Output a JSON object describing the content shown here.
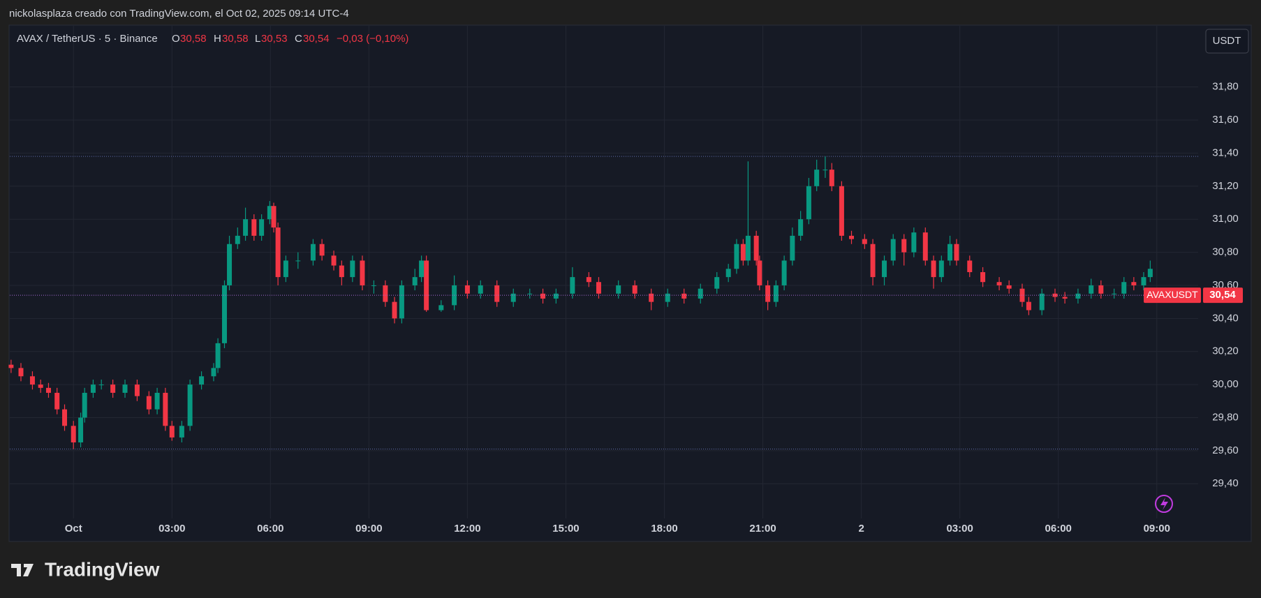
{
  "header": {
    "caption": "nickolasplaza creado con TradingView.com, el Oct 02, 2025 09:14 UTC-4"
  },
  "legend": {
    "symbol": "AVAX / TetherUS · 5 · Binance",
    "open_label": "O",
    "open": "30,58",
    "high_label": "H",
    "high": "30,58",
    "low_label": "L",
    "low": "30,53",
    "close_label": "C",
    "close": "30,54",
    "change": "−0,03 (−0,10%)"
  },
  "footer": {
    "brand": "TradingView"
  },
  "chart_data": {
    "type": "candlestick",
    "currency": "USDT",
    "symbol_tag": "AVAXUSDT",
    "last_price_label": "30,54",
    "up_color": "#089981",
    "down_color": "#f23645",
    "grid": true,
    "price_lines": [
      31.38,
      29.61
    ],
    "x": [
      -1.9,
      -1.6,
      -1.25,
      -1.0,
      -0.76,
      -0.5,
      -0.27,
      0,
      0.22,
      0.34,
      0.6,
      0.85,
      1.2,
      1.57,
      1.94,
      2.3,
      2.55,
      2.8,
      3.0,
      3.3,
      3.55,
      3.9,
      4.27,
      4.4,
      4.6,
      4.75,
      5.0,
      5.24,
      5.5,
      5.73,
      5.98,
      6.1,
      6.23,
      6.47,
      6.84,
      7.3,
      7.57,
      7.93,
      8.17,
      8.5,
      8.8,
      9.15,
      9.5,
      9.78,
      10.0,
      10.4,
      10.6,
      10.75,
      11.2,
      11.6,
      12.0,
      12.4,
      12.9,
      13.4,
      13.9,
      14.3,
      14.7,
      15.2,
      15.7,
      16.0,
      16.6,
      17.1,
      17.6,
      18.1,
      18.6,
      19.1,
      19.6,
      19.95,
      20.2,
      20.4,
      20.55,
      20.8,
      20.9,
      21.15,
      21.4,
      21.65,
      21.9,
      22.15,
      22.4,
      22.64,
      22.9,
      23.1,
      23.4,
      23.7,
      24.1,
      24.35,
      24.7,
      24.97,
      25.3,
      25.6,
      25.95,
      26.2,
      26.44,
      26.7,
      26.9,
      27.3,
      27.7,
      28.2,
      28.5,
      28.9,
      29.1,
      29.5,
      29.9,
      30.2,
      30.6,
      31.0,
      31.3,
      31.7,
      32.0,
      32.3,
      32.6,
      32.8,
      33.0
    ],
    "open": [
      30.12,
      30.1,
      30.05,
      30.0,
      29.98,
      29.95,
      29.85,
      29.75,
      29.65,
      29.8,
      29.95,
      30.0,
      30.0,
      29.95,
      30.0,
      29.93,
      29.85,
      29.95,
      29.75,
      29.68,
      29.75,
      30.0,
      30.05,
      30.1,
      30.25,
      30.6,
      30.85,
      30.9,
      31.0,
      30.9,
      31.0,
      31.08,
      30.95,
      30.65,
      30.75,
      30.75,
      30.85,
      30.78,
      30.72,
      30.65,
      30.75,
      30.6,
      30.6,
      30.5,
      30.4,
      30.6,
      30.65,
      30.75,
      30.45,
      30.48,
      30.6,
      30.55,
      30.6,
      30.5,
      30.55,
      30.55,
      30.52,
      30.55,
      30.65,
      30.62,
      30.55,
      30.6,
      30.55,
      30.5,
      30.55,
      30.52,
      30.58,
      30.65,
      30.7,
      30.85,
      30.75,
      30.9,
      30.75,
      30.6,
      30.5,
      30.6,
      30.75,
      30.9,
      31.0,
      31.2,
      31.3,
      31.3,
      31.2,
      30.9,
      30.88,
      30.85,
      30.65,
      30.75,
      30.88,
      30.8,
      30.92,
      30.75,
      30.65,
      30.75,
      30.85,
      30.75,
      30.68,
      30.62,
      30.6,
      30.58,
      30.5,
      30.45,
      30.55,
      30.53,
      30.52,
      30.55,
      30.6,
      30.55,
      30.55,
      30.62,
      30.6,
      30.65,
      30.58
    ],
    "high": [
      30.15,
      30.13,
      30.08,
      30.03,
      30.01,
      29.98,
      29.88,
      29.78,
      29.83,
      29.98,
      30.03,
      30.03,
      30.03,
      30.03,
      30.03,
      29.96,
      29.98,
      29.98,
      29.78,
      29.78,
      30.03,
      30.08,
      30.13,
      30.28,
      30.63,
      30.9,
      30.95,
      31.07,
      31.03,
      31.03,
      31.11,
      31.1,
      30.98,
      30.78,
      30.8,
      30.88,
      30.88,
      30.81,
      30.75,
      30.78,
      30.78,
      30.63,
      30.63,
      30.53,
      30.63,
      30.7,
      30.78,
      30.78,
      30.51,
      30.66,
      30.63,
      30.63,
      30.63,
      30.58,
      30.58,
      30.58,
      30.58,
      30.71,
      30.68,
      30.65,
      30.63,
      30.63,
      30.58,
      30.58,
      30.58,
      30.61,
      30.68,
      30.73,
      30.88,
      30.88,
      31.35,
      30.93,
      30.78,
      30.63,
      30.63,
      30.78,
      30.95,
      31.05,
      31.25,
      31.36,
      31.38,
      31.34,
      31.23,
      30.93,
      30.91,
      30.88,
      30.78,
      30.91,
      30.91,
      30.95,
      30.95,
      30.78,
      30.78,
      30.9,
      30.88,
      30.78,
      30.71,
      30.65,
      30.63,
      30.61,
      30.53,
      30.58,
      30.58,
      30.56,
      30.58,
      30.64,
      30.63,
      30.58,
      30.65,
      30.65,
      30.68,
      30.75,
      30.58
    ],
    "low": [
      30.07,
      30.02,
      29.97,
      29.95,
      29.92,
      29.82,
      29.72,
      29.61,
      29.62,
      29.77,
      29.92,
      29.97,
      29.92,
      29.92,
      29.9,
      29.82,
      29.82,
      29.72,
      29.66,
      29.65,
      29.72,
      29.97,
      30.02,
      30.07,
      30.22,
      30.57,
      30.82,
      30.87,
      30.87,
      30.87,
      30.97,
      30.92,
      30.6,
      30.62,
      30.7,
      30.72,
      30.75,
      30.69,
      30.6,
      30.62,
      30.57,
      30.55,
      30.47,
      30.37,
      30.37,
      30.57,
      30.62,
      30.44,
      30.44,
      30.45,
      30.52,
      30.52,
      30.47,
      30.47,
      30.52,
      30.49,
      30.49,
      30.52,
      30.59,
      30.52,
      30.52,
      30.52,
      30.45,
      30.47,
      30.49,
      30.49,
      30.55,
      30.62,
      30.67,
      30.72,
      30.72,
      30.72,
      30.57,
      30.45,
      30.47,
      30.57,
      30.72,
      30.87,
      30.97,
      31.17,
      31.25,
      31.17,
      30.87,
      30.85,
      30.82,
      30.6,
      30.6,
      30.72,
      30.72,
      30.77,
      30.72,
      30.58,
      30.62,
      30.72,
      30.72,
      30.65,
      30.59,
      30.57,
      30.55,
      30.47,
      30.42,
      30.42,
      30.5,
      30.49,
      30.49,
      30.52,
      30.52,
      30.52,
      30.52,
      30.57,
      30.57,
      30.62,
      30.53
    ],
    "close": [
      30.1,
      30.05,
      30.0,
      29.98,
      29.95,
      29.85,
      29.75,
      29.65,
      29.8,
      29.95,
      30.0,
      30.0,
      29.95,
      30.0,
      29.93,
      29.85,
      29.95,
      29.75,
      29.68,
      29.75,
      30.0,
      30.05,
      30.1,
      30.25,
      30.6,
      30.85,
      30.9,
      31.0,
      30.9,
      31.0,
      31.08,
      30.95,
      30.65,
      30.75,
      30.75,
      30.85,
      30.78,
      30.72,
      30.65,
      30.75,
      30.6,
      30.6,
      30.5,
      30.4,
      30.6,
      30.65,
      30.75,
      30.45,
      30.48,
      30.6,
      30.55,
      30.6,
      30.5,
      30.55,
      30.55,
      30.52,
      30.55,
      30.65,
      30.62,
      30.55,
      30.6,
      30.55,
      30.5,
      30.55,
      30.52,
      30.58,
      30.65,
      30.7,
      30.85,
      30.75,
      30.9,
      30.75,
      30.6,
      30.5,
      30.6,
      30.75,
      30.9,
      31.0,
      31.2,
      31.3,
      31.3,
      31.2,
      30.9,
      30.88,
      30.85,
      30.65,
      30.75,
      30.88,
      30.8,
      30.92,
      30.75,
      30.65,
      30.75,
      30.85,
      30.75,
      30.68,
      30.62,
      30.6,
      30.58,
      30.5,
      30.45,
      30.55,
      30.53,
      30.52,
      30.55,
      30.6,
      30.55,
      30.55,
      30.62,
      30.6,
      30.65,
      30.7,
      30.54
    ],
    "xlim": [
      -1.94,
      34.26
    ],
    "xticks": [
      {
        "value": 0,
        "label": "Oct"
      },
      {
        "value": 3,
        "label": "03:00"
      },
      {
        "value": 6,
        "label": "06:00"
      },
      {
        "value": 9,
        "label": "09:00"
      },
      {
        "value": 12,
        "label": "12:00"
      },
      {
        "value": 15,
        "label": "15:00"
      },
      {
        "value": 18,
        "label": "18:00"
      },
      {
        "value": 21,
        "label": "21:00"
      },
      {
        "value": 24,
        "label": "2"
      },
      {
        "value": 27,
        "label": "03:00"
      },
      {
        "value": 30,
        "label": "06:00"
      },
      {
        "value": 33,
        "label": "09:00"
      }
    ],
    "ylim": [
      29.19,
      32.17
    ],
    "yticks": [
      {
        "value": 29.4,
        "label": "29,40"
      },
      {
        "value": 29.6,
        "label": "29,60"
      },
      {
        "value": 29.8,
        "label": "29,80"
      },
      {
        "value": 30.0,
        "label": "30,00"
      },
      {
        "value": 30.2,
        "label": "30,20"
      },
      {
        "value": 30.4,
        "label": "30,40"
      },
      {
        "value": 30.6,
        "label": "30,60"
      },
      {
        "value": 30.8,
        "label": "30,80"
      },
      {
        "value": 31.0,
        "label": "31,00"
      },
      {
        "value": 31.2,
        "label": "31,20"
      },
      {
        "value": 31.4,
        "label": "31,40"
      },
      {
        "value": 31.6,
        "label": "31,60"
      },
      {
        "value": 31.8,
        "label": "31,80"
      }
    ]
  }
}
